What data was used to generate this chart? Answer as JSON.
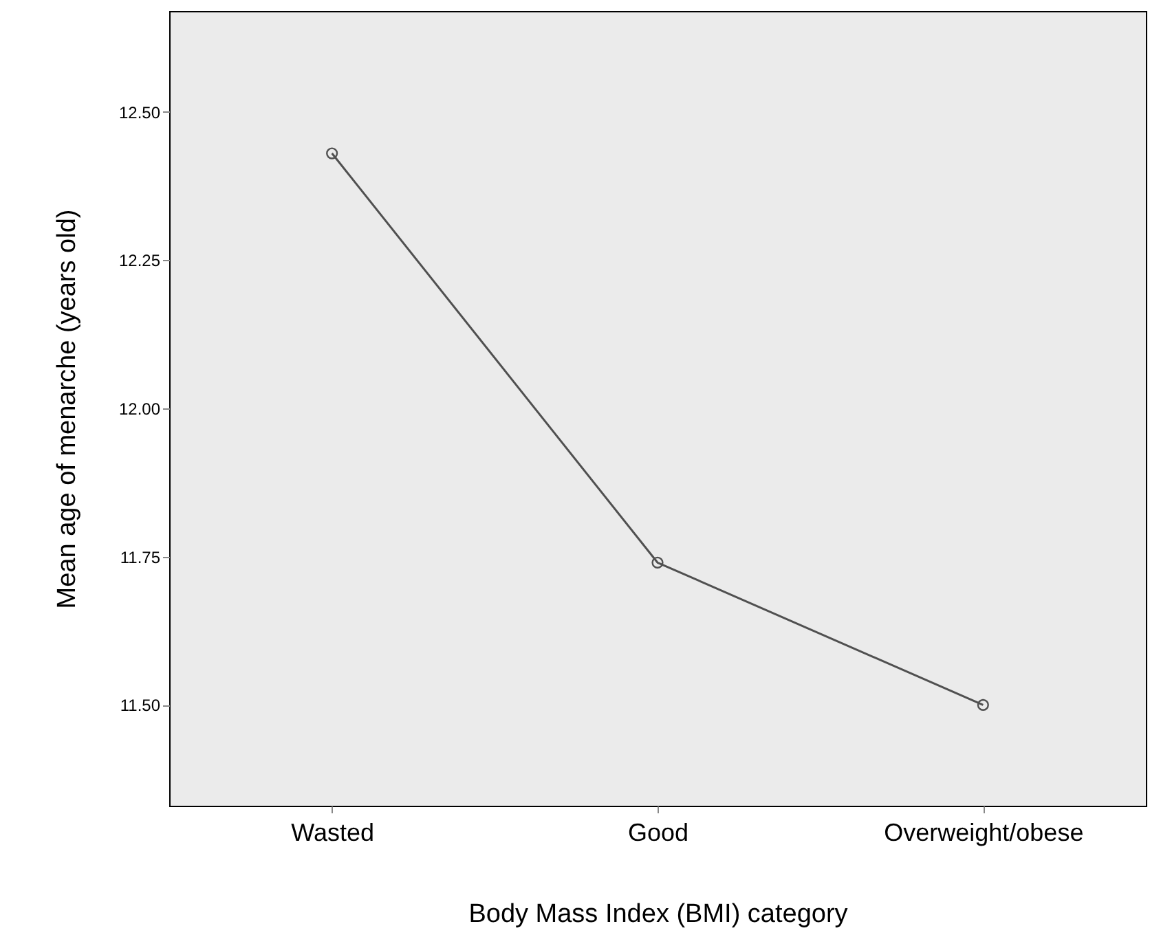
{
  "chart_data": {
    "type": "line",
    "xlabel": "Body Mass Index (BMI) category",
    "ylabel": "Mean age of menarche (years old)",
    "categories": [
      "Wasted",
      "Good",
      "Overweight/obese"
    ],
    "series": [
      {
        "color": "#505050",
        "values": [
          12.43,
          11.74,
          11.5
        ]
      }
    ],
    "ylim": [
      11.33,
      12.67
    ],
    "yticks": [
      {
        "value": 11.5,
        "label": "11.50"
      },
      {
        "value": 11.75,
        "label": "11.75"
      },
      {
        "value": 12,
        "label": "12.00"
      },
      {
        "value": 12.25,
        "label": "12.25"
      },
      {
        "value": 12.5,
        "label": "12.50"
      }
    ],
    "grid": false,
    "marker": "circle",
    "line_style": "solid"
  }
}
